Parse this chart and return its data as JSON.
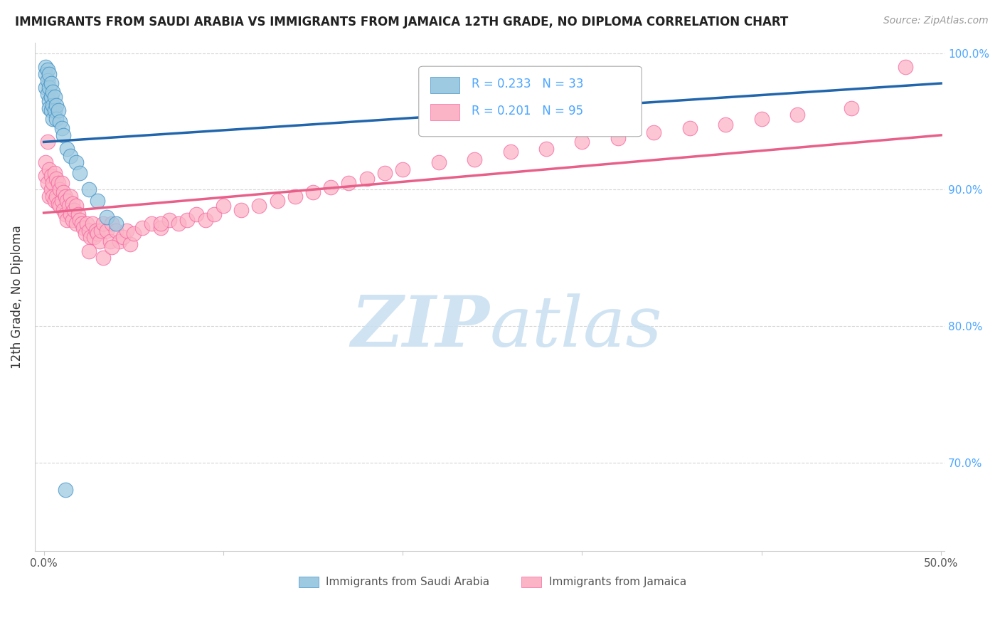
{
  "title": "IMMIGRANTS FROM SAUDI ARABIA VS IMMIGRANTS FROM JAMAICA 12TH GRADE, NO DIPLOMA CORRELATION CHART",
  "source": "Source: ZipAtlas.com",
  "ylabel": "12th Grade, No Diploma",
  "xlim": [
    -0.005,
    0.502
  ],
  "ylim": [
    0.635,
    1.008
  ],
  "ytick_positions": [
    0.7,
    0.8,
    0.9,
    1.0
  ],
  "ytick_labels": [
    "70.0%",
    "80.0%",
    "90.0%",
    "100.0%"
  ],
  "xtick_positions": [
    0.0,
    0.1,
    0.2,
    0.3,
    0.4,
    0.5
  ],
  "xtick_labels": [
    "0.0%",
    "",
    "",
    "",
    "",
    "50.0%"
  ],
  "grid_color": "#cccccc",
  "background_color": "#ffffff",
  "watermark_zip": "ZIP",
  "watermark_atlas": "atlas",
  "watermark_color_zip": "#c8dff0",
  "watermark_color_atlas": "#c8dff0",
  "saudi_color": "#9ecae1",
  "saudi_edge_color": "#4292c6",
  "jamaica_color": "#fbb4c6",
  "jamaica_edge_color": "#f768a1",
  "saudi_R": 0.233,
  "saudi_N": 33,
  "jamaica_R": 0.201,
  "jamaica_N": 95,
  "legend_label_saudi": "Immigrants from Saudi Arabia",
  "legend_label_jamaica": "Immigrants from Jamaica",
  "saudi_x": [
    0.001,
    0.001,
    0.001,
    0.002,
    0.002,
    0.002,
    0.003,
    0.003,
    0.003,
    0.003,
    0.004,
    0.004,
    0.004,
    0.005,
    0.005,
    0.005,
    0.006,
    0.006,
    0.007,
    0.007,
    0.008,
    0.009,
    0.01,
    0.011,
    0.013,
    0.015,
    0.018,
    0.02,
    0.025,
    0.03,
    0.035,
    0.04,
    0.012
  ],
  "saudi_y": [
    0.99,
    0.985,
    0.975,
    0.988,
    0.98,
    0.97,
    0.985,
    0.975,
    0.965,
    0.96,
    0.978,
    0.968,
    0.958,
    0.972,
    0.962,
    0.952,
    0.968,
    0.958,
    0.962,
    0.952,
    0.958,
    0.95,
    0.945,
    0.94,
    0.93,
    0.925,
    0.92,
    0.912,
    0.9,
    0.892,
    0.88,
    0.875,
    0.68
  ],
  "jamaica_x": [
    0.001,
    0.001,
    0.002,
    0.002,
    0.003,
    0.003,
    0.004,
    0.004,
    0.005,
    0.005,
    0.006,
    0.006,
    0.007,
    0.007,
    0.008,
    0.008,
    0.009,
    0.009,
    0.01,
    0.01,
    0.011,
    0.011,
    0.012,
    0.012,
    0.013,
    0.013,
    0.014,
    0.015,
    0.015,
    0.016,
    0.016,
    0.017,
    0.018,
    0.018,
    0.019,
    0.02,
    0.021,
    0.022,
    0.023,
    0.024,
    0.025,
    0.026,
    0.027,
    0.028,
    0.029,
    0.03,
    0.031,
    0.032,
    0.033,
    0.035,
    0.037,
    0.038,
    0.04,
    0.042,
    0.044,
    0.046,
    0.048,
    0.05,
    0.055,
    0.06,
    0.065,
    0.07,
    0.075,
    0.08,
    0.085,
    0.09,
    0.095,
    0.1,
    0.11,
    0.12,
    0.13,
    0.14,
    0.15,
    0.16,
    0.17,
    0.18,
    0.19,
    0.2,
    0.22,
    0.24,
    0.26,
    0.28,
    0.3,
    0.32,
    0.34,
    0.36,
    0.38,
    0.4,
    0.42,
    0.45,
    0.025,
    0.033,
    0.038,
    0.065,
    0.48
  ],
  "jamaica_y": [
    0.92,
    0.91,
    0.935,
    0.905,
    0.915,
    0.895,
    0.91,
    0.9,
    0.905,
    0.895,
    0.912,
    0.892,
    0.908,
    0.895,
    0.905,
    0.89,
    0.9,
    0.888,
    0.905,
    0.892,
    0.898,
    0.885,
    0.895,
    0.882,
    0.892,
    0.878,
    0.888,
    0.895,
    0.882,
    0.89,
    0.878,
    0.885,
    0.888,
    0.875,
    0.882,
    0.878,
    0.875,
    0.872,
    0.868,
    0.875,
    0.87,
    0.865,
    0.875,
    0.865,
    0.87,
    0.868,
    0.862,
    0.87,
    0.875,
    0.87,
    0.862,
    0.875,
    0.87,
    0.862,
    0.865,
    0.87,
    0.86,
    0.868,
    0.872,
    0.875,
    0.872,
    0.878,
    0.875,
    0.878,
    0.882,
    0.878,
    0.882,
    0.888,
    0.885,
    0.888,
    0.892,
    0.895,
    0.898,
    0.902,
    0.905,
    0.908,
    0.912,
    0.915,
    0.92,
    0.922,
    0.928,
    0.93,
    0.935,
    0.938,
    0.942,
    0.945,
    0.948,
    0.952,
    0.955,
    0.96,
    0.855,
    0.85,
    0.858,
    0.875,
    0.99
  ],
  "saudi_trend_x": [
    0.0,
    0.5
  ],
  "saudi_trend_y": [
    0.935,
    0.978
  ],
  "jamaica_trend_x": [
    0.0,
    0.5
  ],
  "jamaica_trend_y": [
    0.883,
    0.94
  ]
}
